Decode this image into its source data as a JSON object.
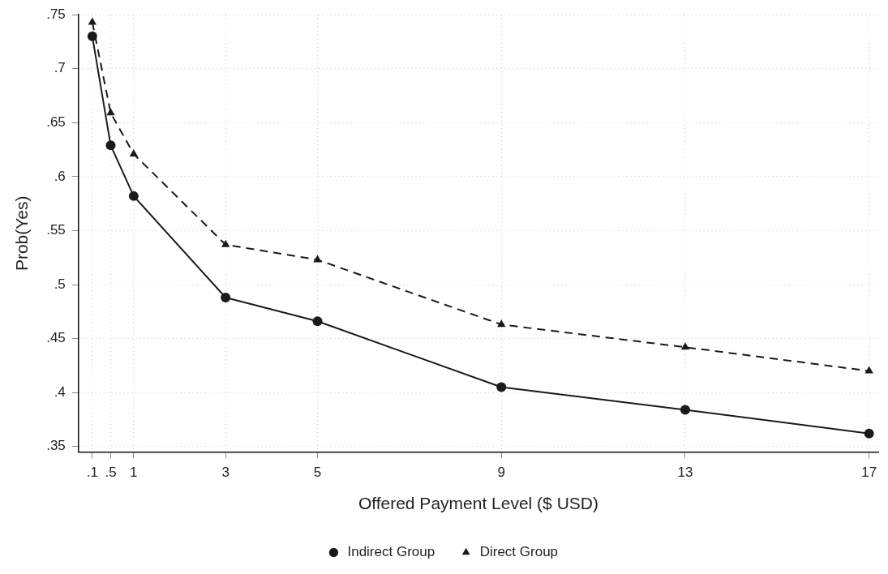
{
  "chart_data": {
    "type": "line",
    "xlabel": "Offered Payment Level ($ USD)",
    "ylabel": "Prob(Yes)",
    "x": [
      0.1,
      0.5,
      1,
      3,
      5,
      9,
      13,
      17
    ],
    "series": [
      {
        "name": "Indirect Group",
        "color": "#1a1a1a",
        "marker": "circle",
        "line_style": "solid",
        "values": [
          0.73,
          0.629,
          0.582,
          0.488,
          0.466,
          0.405,
          0.384,
          0.362
        ]
      },
      {
        "name": "Direct Group",
        "color": "#1a1a1a",
        "marker": "triangle",
        "line_style": "dashed",
        "values": [
          0.743,
          0.659,
          0.621,
          0.537,
          0.523,
          0.463,
          0.442,
          0.42
        ]
      }
    ],
    "xlim": [
      -0.2,
      17.2
    ],
    "ylim": [
      0.345,
      0.75
    ],
    "xticks": [
      {
        "value": 0.1,
        "label": ".1"
      },
      {
        "value": 0.5,
        "label": ".5"
      },
      1,
      3,
      5,
      9,
      13,
      17
    ],
    "yticks": [
      {
        "value": 0.35,
        "label": ".35"
      },
      {
        "value": 0.4,
        "label": ".4"
      },
      {
        "value": 0.45,
        "label": ".45"
      },
      {
        "value": 0.5,
        "label": ".5"
      },
      {
        "value": 0.55,
        "label": ".55"
      },
      {
        "value": 0.6,
        "label": ".6"
      },
      {
        "value": 0.65,
        "label": ".65"
      },
      {
        "value": 0.7,
        "label": ".7"
      },
      {
        "value": 0.75,
        "label": ".75"
      }
    ],
    "grid": true,
    "legend": "bottom"
  }
}
